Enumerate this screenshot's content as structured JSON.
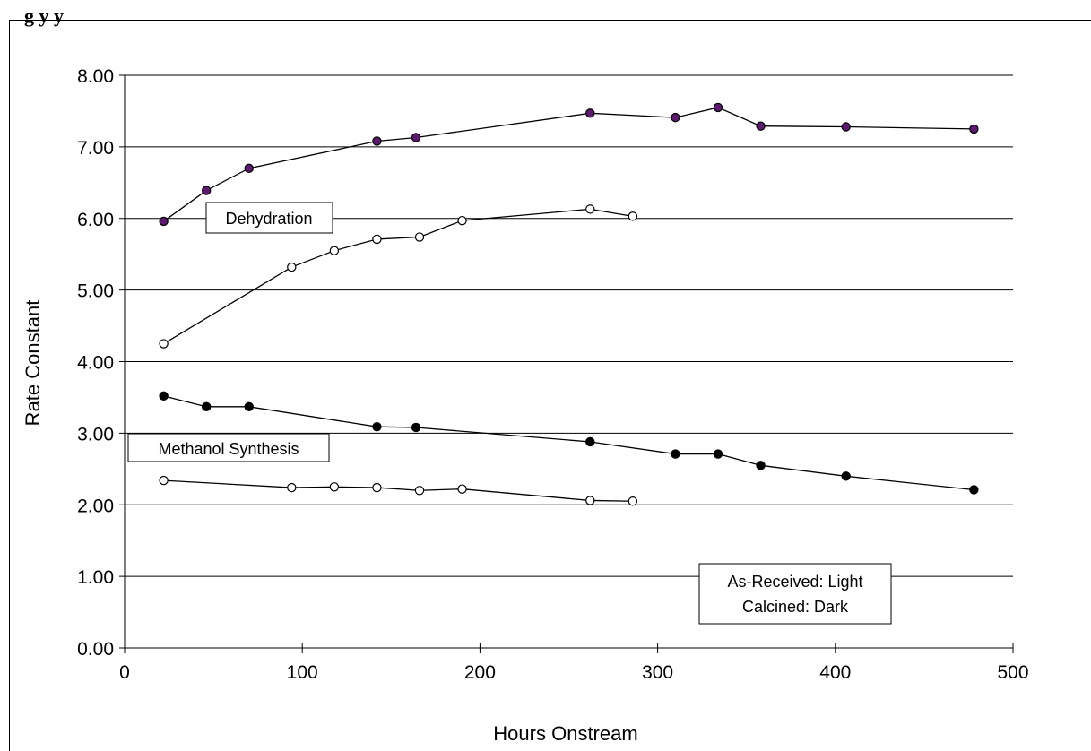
{
  "header": {
    "title_fragment": "g                                        y              y"
  },
  "chart_data": {
    "type": "line",
    "xlabel": "Hours Onstream",
    "ylabel": "Rate Constant",
    "xlim": [
      0,
      500
    ],
    "ylim": [
      0,
      8
    ],
    "x_ticks": [
      "0",
      "100",
      "200",
      "300",
      "400",
      "500"
    ],
    "y_ticks": [
      "0.00",
      "1.00",
      "2.00",
      "3.00",
      "4.00",
      "5.00",
      "6.00",
      "7.00",
      "8.00"
    ],
    "grid": "horizontal",
    "series": [
      {
        "group": "Dehydration",
        "variant": "Calcined",
        "marker_fill": "#5b1a6e",
        "points": [
          [
            22,
            5.96
          ],
          [
            46,
            6.39
          ],
          [
            70,
            6.7
          ],
          [
            142,
            7.08
          ],
          [
            164,
            7.13
          ],
          [
            262,
            7.47
          ],
          [
            310,
            7.41
          ],
          [
            334,
            7.55
          ],
          [
            358,
            7.29
          ],
          [
            406,
            7.28
          ],
          [
            478,
            7.25
          ]
        ]
      },
      {
        "group": "Dehydration",
        "variant": "As-Received",
        "marker_fill": "#ffffff",
        "points": [
          [
            22,
            4.25
          ],
          [
            94,
            5.32
          ],
          [
            118,
            5.55
          ],
          [
            142,
            5.71
          ],
          [
            166,
            5.74
          ],
          [
            190,
            5.97
          ],
          [
            262,
            6.13
          ],
          [
            286,
            6.03
          ]
        ]
      },
      {
        "group": "Methanol Synthesis",
        "variant": "Calcined",
        "marker_fill": "#000000",
        "points": [
          [
            22,
            3.52
          ],
          [
            46,
            3.37
          ],
          [
            70,
            3.37
          ],
          [
            142,
            3.09
          ],
          [
            164,
            3.08
          ],
          [
            262,
            2.88
          ],
          [
            310,
            2.71
          ],
          [
            334,
            2.71
          ],
          [
            358,
            2.55
          ],
          [
            406,
            2.4
          ],
          [
            478,
            2.21
          ]
        ]
      },
      {
        "group": "Methanol Synthesis",
        "variant": "As-Received",
        "marker_fill": "#ffffff",
        "points": [
          [
            22,
            2.34
          ],
          [
            94,
            2.24
          ],
          [
            118,
            2.25
          ],
          [
            142,
            2.24
          ],
          [
            166,
            2.2
          ],
          [
            190,
            2.22
          ],
          [
            262,
            2.06
          ],
          [
            286,
            2.05
          ]
        ]
      }
    ],
    "annotations": {
      "dehydration": "Dehydration",
      "methanol": "Methanol Synthesis",
      "legend_line1": "As-Received: Light",
      "legend_line2": "Calcined: Dark"
    }
  }
}
